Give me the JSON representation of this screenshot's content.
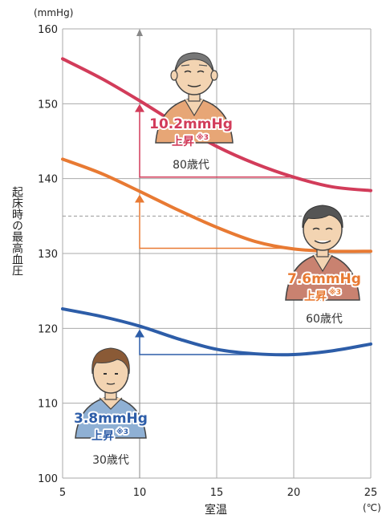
{
  "chart_data": {
    "type": "line",
    "y_unit": "(mmHg)",
    "x_unit": "(℃)",
    "xlabel": "室温",
    "ylabel": "起床時の最高血圧",
    "xlim": [
      5,
      25
    ],
    "ylim": [
      100,
      160
    ],
    "x_ticks": [
      5,
      10,
      15,
      20,
      25
    ],
    "y_ticks": [
      100,
      110,
      120,
      130,
      140,
      150,
      160
    ],
    "grid": true,
    "reference_line": 135,
    "series": [
      {
        "color": "#d23c5a",
        "age_label": "80歳代",
        "rise_label": "10.2mmHg",
        "rise_word": "上昇",
        "rise_note": "※3",
        "points": [
          [
            5,
            156.0
          ],
          [
            7.5,
            153.4
          ],
          [
            10,
            150.4
          ],
          [
            12.5,
            147.2
          ],
          [
            15,
            144.3
          ],
          [
            17.5,
            142.0
          ],
          [
            20,
            140.2
          ],
          [
            22.5,
            138.9
          ],
          [
            25,
            138.4
          ]
        ],
        "baseline": 140.2
      },
      {
        "color": "#e87a33",
        "age_label": "60歳代",
        "rise_label": "7.6mmHg",
        "rise_word": "上昇",
        "rise_note": "※3",
        "points": [
          [
            5,
            142.6
          ],
          [
            7.5,
            140.7
          ],
          [
            10,
            138.3
          ],
          [
            12.5,
            135.8
          ],
          [
            15,
            133.5
          ],
          [
            17.5,
            131.6
          ],
          [
            20,
            130.6
          ],
          [
            22.5,
            130.3
          ],
          [
            25,
            130.3
          ]
        ],
        "baseline": 130.7
      },
      {
        "color": "#2d5da8",
        "age_label": "30歳代",
        "rise_label": "3.8mmHg",
        "rise_word": "上昇",
        "rise_note": "※3",
        "points": [
          [
            5,
            122.6
          ],
          [
            7.5,
            121.6
          ],
          [
            10,
            120.3
          ],
          [
            12.5,
            118.6
          ],
          [
            15,
            117.2
          ],
          [
            17.5,
            116.6
          ],
          [
            20,
            116.5
          ],
          [
            22.5,
            117.0
          ],
          [
            25,
            117.9
          ]
        ],
        "baseline": 116.5
      }
    ],
    "colors": {
      "grid": "#aaaaaa",
      "axis_arrow": "#888888",
      "reference": "#999999"
    },
    "icons": [
      "elderly-man-icon",
      "middle-aged-man-icon",
      "young-man-icon"
    ]
  }
}
